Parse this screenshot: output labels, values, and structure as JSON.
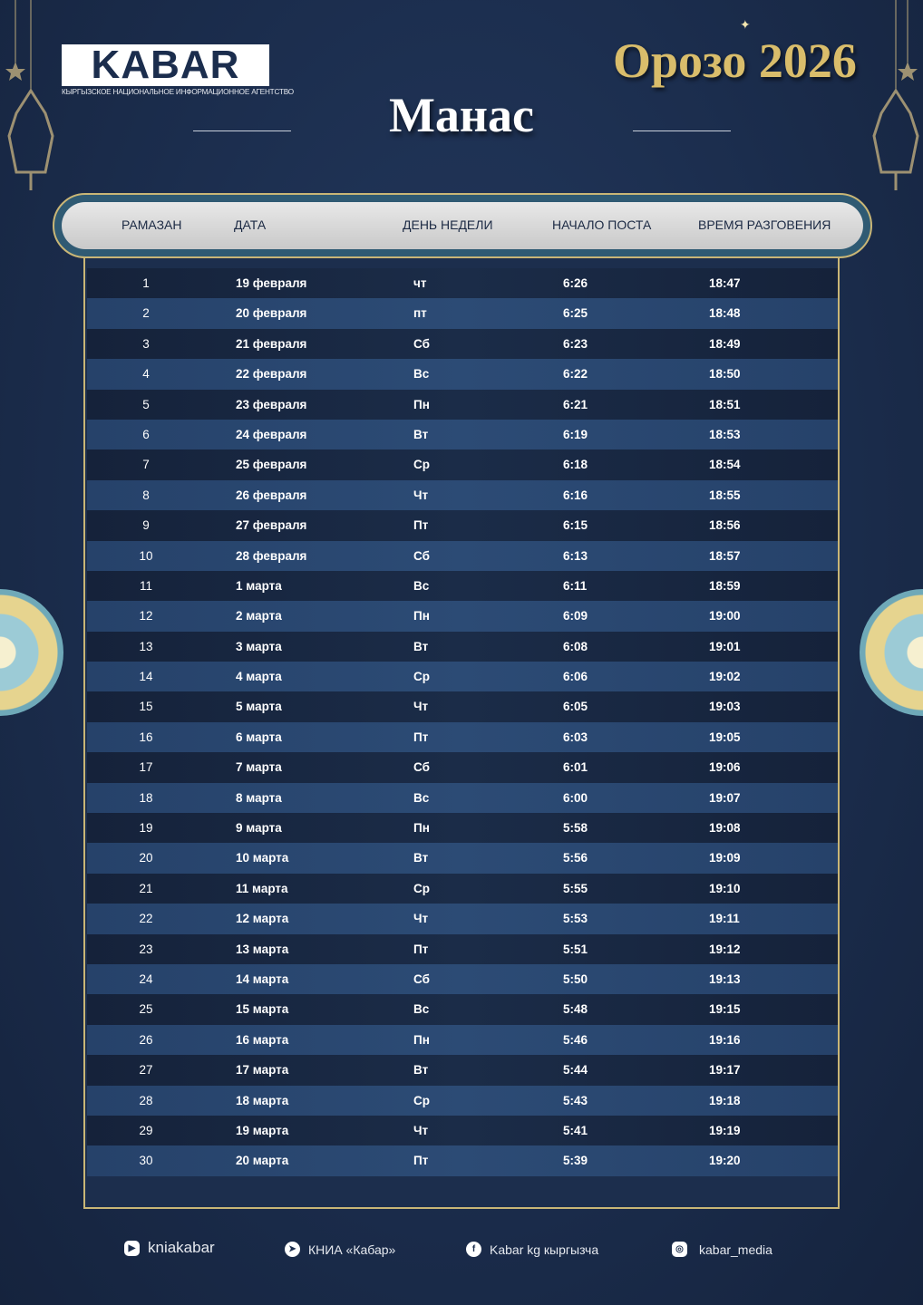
{
  "logo": {
    "text": "KABAR",
    "subtitle": "КЫРГЫЗСКОЕ НАЦИОНАЛЬНОЕ ИНФОРМАЦИОННОЕ АГЕНТСТВО"
  },
  "title": "Орозо 2026",
  "city": "Манас",
  "colors": {
    "background": "#1b2d4d",
    "gold": "#d9bd6b",
    "row_dark": "#1b2c48",
    "row_light": "#2c4b75"
  },
  "table": {
    "headers": [
      "РАМАЗАН",
      "ДАТА",
      "ДЕНЬ НЕДЕЛИ",
      "НАЧАЛО ПОСТА",
      "ВРЕМЯ РАЗГОВЕНИЯ"
    ],
    "rows": [
      {
        "num": "1",
        "date": "19 февраля",
        "day": "чт",
        "start": "6:26",
        "end": "18:47"
      },
      {
        "num": "2",
        "date": "20 февраля",
        "day": "пт",
        "start": "6:25",
        "end": "18:48"
      },
      {
        "num": "3",
        "date": "21 февраля",
        "day": "Сб",
        "start": "6:23",
        "end": "18:49"
      },
      {
        "num": "4",
        "date": "22 февраля",
        "day": "Вс",
        "start": "6:22",
        "end": "18:50"
      },
      {
        "num": "5",
        "date": "23 февраля",
        "day": "Пн",
        "start": "6:21",
        "end": "18:51"
      },
      {
        "num": "6",
        "date": "24 февраля",
        "day": "Вт",
        "start": "6:19",
        "end": "18:53"
      },
      {
        "num": "7",
        "date": "25 февраля",
        "day": "Ср",
        "start": "6:18",
        "end": "18:54"
      },
      {
        "num": "8",
        "date": "26 февраля",
        "day": "Чт",
        "start": "6:16",
        "end": "18:55"
      },
      {
        "num": "9",
        "date": "27 февраля",
        "day": "Пт",
        "start": "6:15",
        "end": "18:56"
      },
      {
        "num": "10",
        "date": "28 февраля",
        "day": "Сб",
        "start": "6:13",
        "end": "18:57"
      },
      {
        "num": "11",
        "date": "1 марта",
        "day": "Вс",
        "start": "6:11",
        "end": "18:59"
      },
      {
        "num": "12",
        "date": "2 марта",
        "day": "Пн",
        "start": "6:09",
        "end": "19:00"
      },
      {
        "num": "13",
        "date": "3 марта",
        "day": "Вт",
        "start": "6:08",
        "end": "19:01"
      },
      {
        "num": "14",
        "date": "4 марта",
        "day": "Ср",
        "start": "6:06",
        "end": "19:02"
      },
      {
        "num": "15",
        "date": "5 марта",
        "day": "Чт",
        "start": "6:05",
        "end": "19:03"
      },
      {
        "num": "16",
        "date": "6 марта",
        "day": "Пт",
        "start": "6:03",
        "end": "19:05"
      },
      {
        "num": "17",
        "date": "7 марта",
        "day": "Сб",
        "start": "6:01",
        "end": "19:06"
      },
      {
        "num": "18",
        "date": "8 марта",
        "day": "Вс",
        "start": "6:00",
        "end": "19:07"
      },
      {
        "num": "19",
        "date": "9 марта",
        "day": "Пн",
        "start": "5:58",
        "end": "19:08"
      },
      {
        "num": "20",
        "date": "10 марта",
        "day": "Вт",
        "start": "5:56",
        "end": "19:09"
      },
      {
        "num": "21",
        "date": "11 марта",
        "day": "Ср",
        "start": "5:55",
        "end": "19:10"
      },
      {
        "num": "22",
        "date": "12 марта",
        "day": "Чт",
        "start": "5:53",
        "end": "19:11"
      },
      {
        "num": "23",
        "date": "13 марта",
        "day": "Пт",
        "start": "5:51",
        "end": "19:12"
      },
      {
        "num": "24",
        "date": "14 марта",
        "day": "Сб",
        "start": "5:50",
        "end": "19:13"
      },
      {
        "num": "25",
        "date": "15 марта",
        "day": "Вс",
        "start": "5:48",
        "end": "19:15"
      },
      {
        "num": "26",
        "date": "16 марта",
        "day": "Пн",
        "start": "5:46",
        "end": "19:16"
      },
      {
        "num": "27",
        "date": "17 марта",
        "day": "Вт",
        "start": "5:44",
        "end": "19:17"
      },
      {
        "num": "28",
        "date": "18 марта",
        "day": "Ср",
        "start": "5:43",
        "end": "19:18"
      },
      {
        "num": "29",
        "date": "19 марта",
        "day": "Чт",
        "start": "5:41",
        "end": "19:19"
      },
      {
        "num": "30",
        "date": "20 марта",
        "day": "Пт",
        "start": "5:39",
        "end": "19:20"
      }
    ]
  },
  "footer": [
    {
      "icon": "youtube-icon",
      "label": "kniakabar"
    },
    {
      "icon": "telegram-icon",
      "label": "КНИА «Кабар»"
    },
    {
      "icon": "facebook-icon",
      "label": "Kabar kg кыргызча"
    },
    {
      "icon": "instagram-icon",
      "label": "kabar_media"
    }
  ]
}
